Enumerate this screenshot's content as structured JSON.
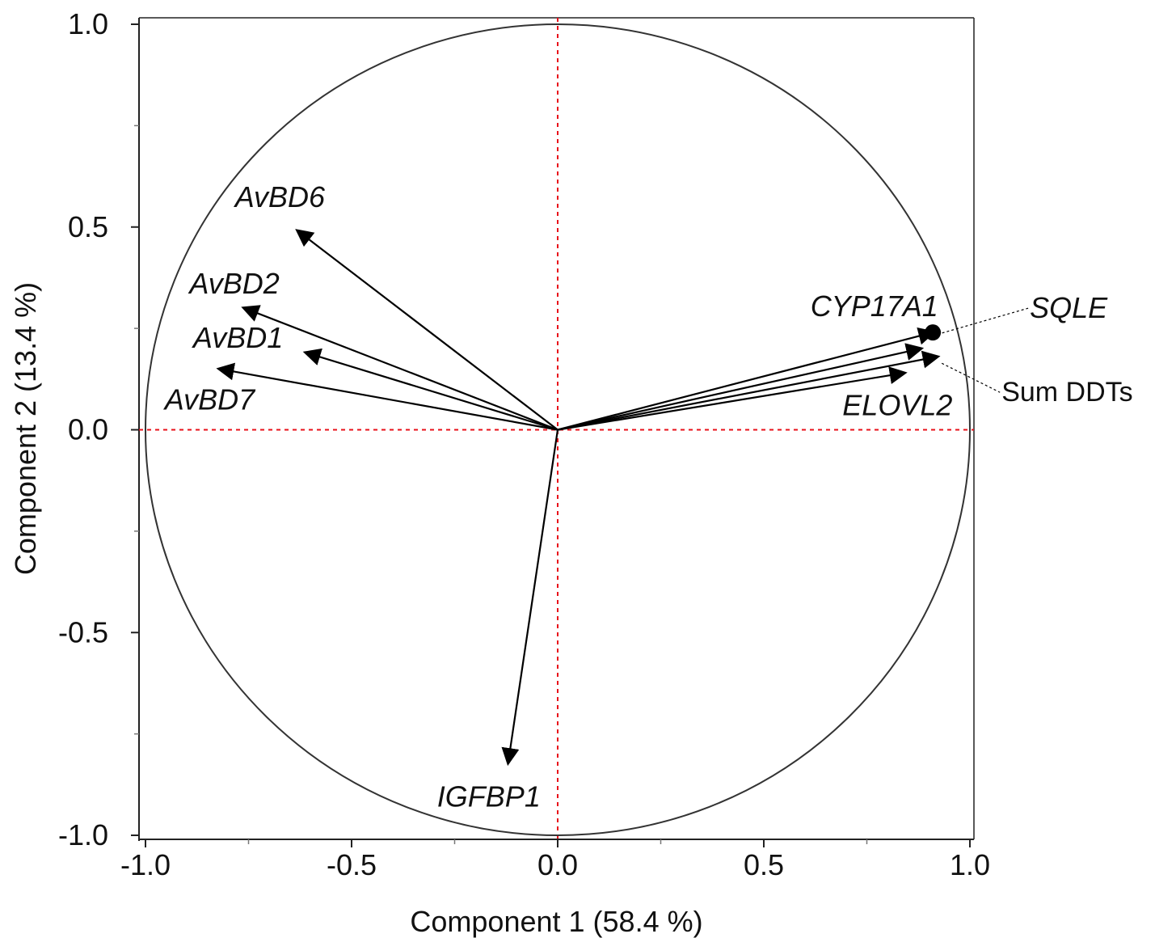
{
  "chart_data": {
    "type": "scatter",
    "subtype": "pca-correlation-circle",
    "title": "",
    "xlabel": "Component 1 (58.4 %)",
    "ylabel": "Component 2 (13.4 %)",
    "xlim": [
      -1.0,
      1.0
    ],
    "ylim": [
      -1.0,
      1.0
    ],
    "x_ticks": [
      "-1.0",
      "-0.5",
      "0.0",
      "0.5",
      "1.0"
    ],
    "y_ticks": [
      "1.0",
      "0.5",
      "0.0",
      "-0.5",
      "-1.0"
    ],
    "reference_lines": {
      "x0": true,
      "y0": true,
      "color": "#e8101a",
      "style": "dashed"
    },
    "unit_circle": true,
    "grid": false,
    "variables": [
      {
        "name": "AvBD6",
        "x": -0.63,
        "y": 0.49,
        "italic": true
      },
      {
        "name": "AvBD2",
        "x": -0.76,
        "y": 0.3,
        "italic": true
      },
      {
        "name": "AvBD1",
        "x": -0.61,
        "y": 0.19,
        "italic": true
      },
      {
        "name": "AvBD7",
        "x": -0.82,
        "y": 0.15,
        "italic": true
      },
      {
        "name": "CYP17A1",
        "x": 0.88,
        "y": 0.2,
        "italic": true
      },
      {
        "name": "SQLE",
        "x": 0.91,
        "y": 0.24,
        "italic": true
      },
      {
        "name": "Sum DDTs",
        "x": 0.92,
        "y": 0.18,
        "italic": false
      },
      {
        "name": "ELOVL2",
        "x": 0.84,
        "y": 0.14,
        "italic": true
      },
      {
        "name": "IGFBP1",
        "x": -0.12,
        "y": -0.82,
        "italic": true
      }
    ]
  }
}
